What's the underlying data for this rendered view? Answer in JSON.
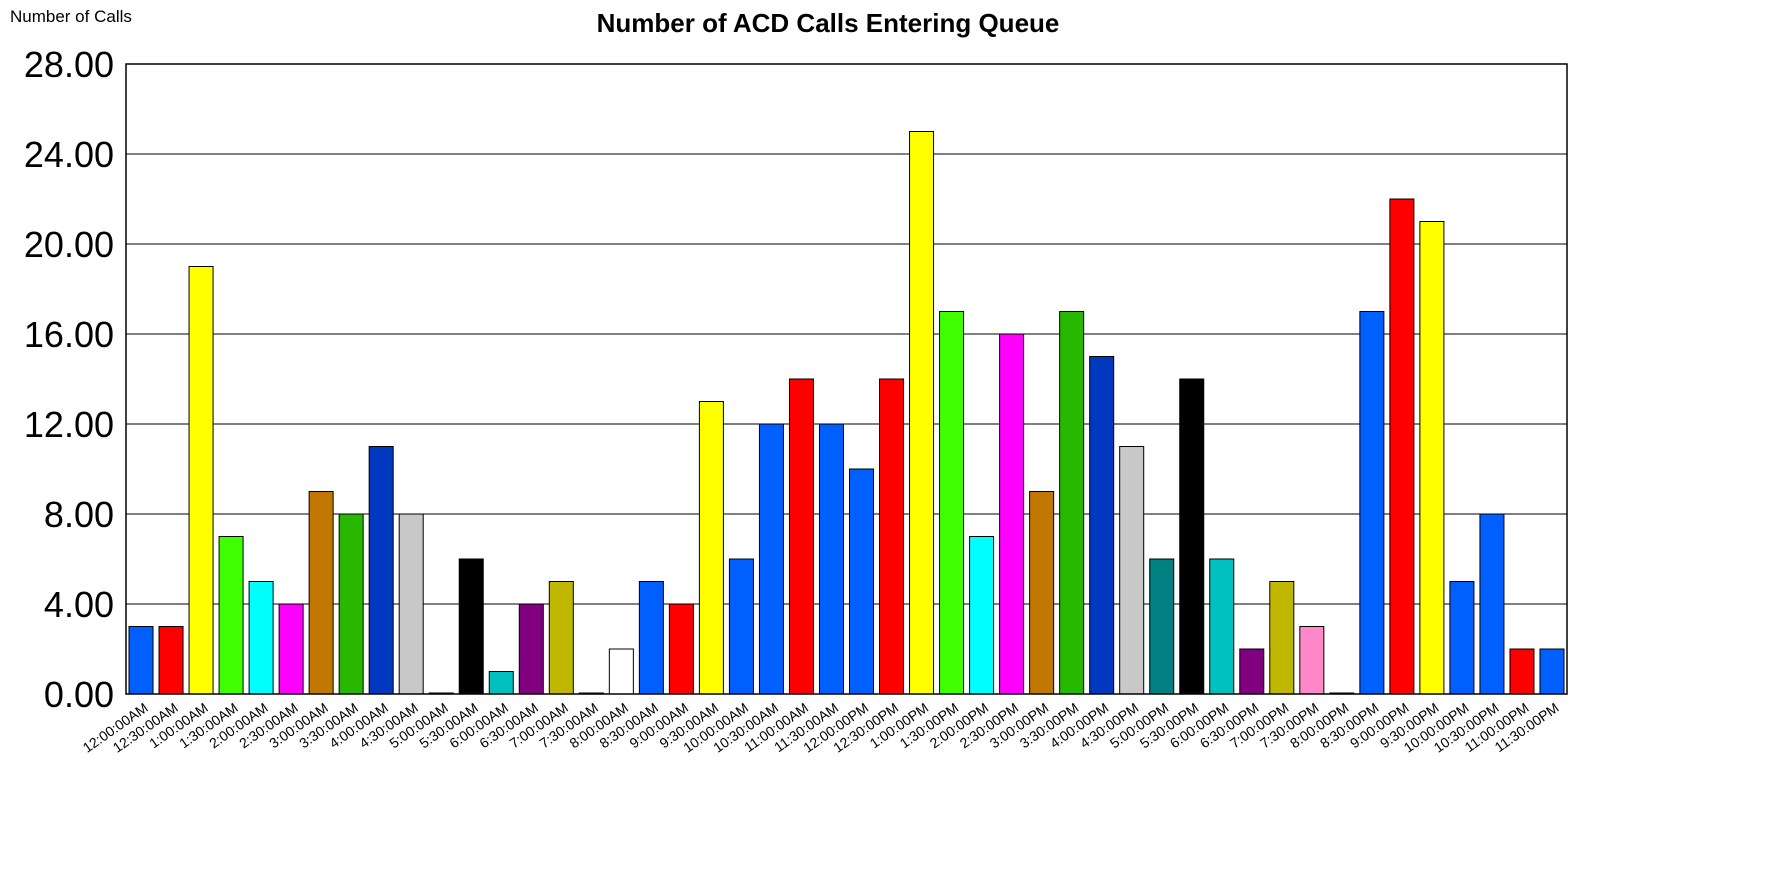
{
  "chart_data": {
    "type": "bar",
    "title": "Number of ACD Calls Entering Queue",
    "ylabel": "Number of Calls",
    "xlabel": "",
    "ylim": [
      0,
      28
    ],
    "yticks": [
      "0.00",
      "4.00",
      "8.00",
      "12.00",
      "16.00",
      "20.00",
      "24.00",
      "28.00"
    ],
    "grid": true,
    "legend": "none",
    "categories": [
      "12:00:00AM",
      "12:30:00AM",
      "1:00:00AM",
      "1:30:00AM",
      "2:00:00AM",
      "2:30:00AM",
      "3:00:00AM",
      "3:30:00AM",
      "4:00:00AM",
      "4:30:00AM",
      "5:00:00AM",
      "5:30:00AM",
      "6:00:00AM",
      "6:30:00AM",
      "7:00:00AM",
      "7:30:00AM",
      "8:00:00AM",
      "8:30:00AM",
      "9:00:00AM",
      "9:30:00AM",
      "10:00:00AM",
      "10:30:00AM",
      "11:00:00AM",
      "11:30:00AM",
      "12:00:00PM",
      "12:30:00PM",
      "1:00:00PM",
      "1:30:00PM",
      "2:00:00PM",
      "2:30:00PM",
      "3:00:00PM",
      "3:30:00PM",
      "4:00:00PM",
      "4:30:00PM",
      "5:00:00PM",
      "5:30:00PM",
      "6:00:00PM",
      "6:30:00PM",
      "7:00:00PM",
      "7:30:00PM",
      "8:00:00PM",
      "8:30:00PM",
      "9:00:00PM",
      "9:30:00PM",
      "10:00:00PM",
      "10:30:00PM",
      "11:00:00PM",
      "11:30:00PM"
    ],
    "values": [
      3,
      3,
      19,
      7,
      5,
      4,
      9,
      8,
      11,
      8,
      0,
      6,
      1,
      4,
      5,
      0,
      2,
      5,
      4,
      13,
      6,
      12,
      14,
      12,
      10,
      14,
      25,
      17,
      7,
      16,
      9,
      17,
      15,
      11,
      6,
      14,
      6,
      2,
      5,
      3,
      0,
      17,
      22,
      21,
      5,
      8,
      2,
      2
    ],
    "colors": [
      "#0060ff",
      "#ff0000",
      "#ffff00",
      "#40ff00",
      "#00ffff",
      "#ff00ff",
      "#c07800",
      "#28b800",
      "#0038c0",
      "#c8c8c8",
      "#ffffff",
      "#000000",
      "#00c0c0",
      "#800080",
      "#c0b800",
      "#0060ff",
      "#ffffff",
      "#0060ff",
      "#ff0000",
      "#ffff00",
      "#0060ff",
      "#0060ff",
      "#ff0000",
      "#0060ff",
      "#0060ff",
      "#ff0000",
      "#ffff00",
      "#40ff00",
      "#00ffff",
      "#ff00ff",
      "#c07800",
      "#28b800",
      "#0038c0",
      "#c8c8c8",
      "#008080",
      "#000000",
      "#00c0c0",
      "#800080",
      "#c0b800",
      "#ff88c8",
      "#0060ff",
      "#0060ff",
      "#ff0000",
      "#ffff00",
      "#0060ff",
      "#0060ff",
      "#ff0000",
      "#0060ff"
    ]
  }
}
